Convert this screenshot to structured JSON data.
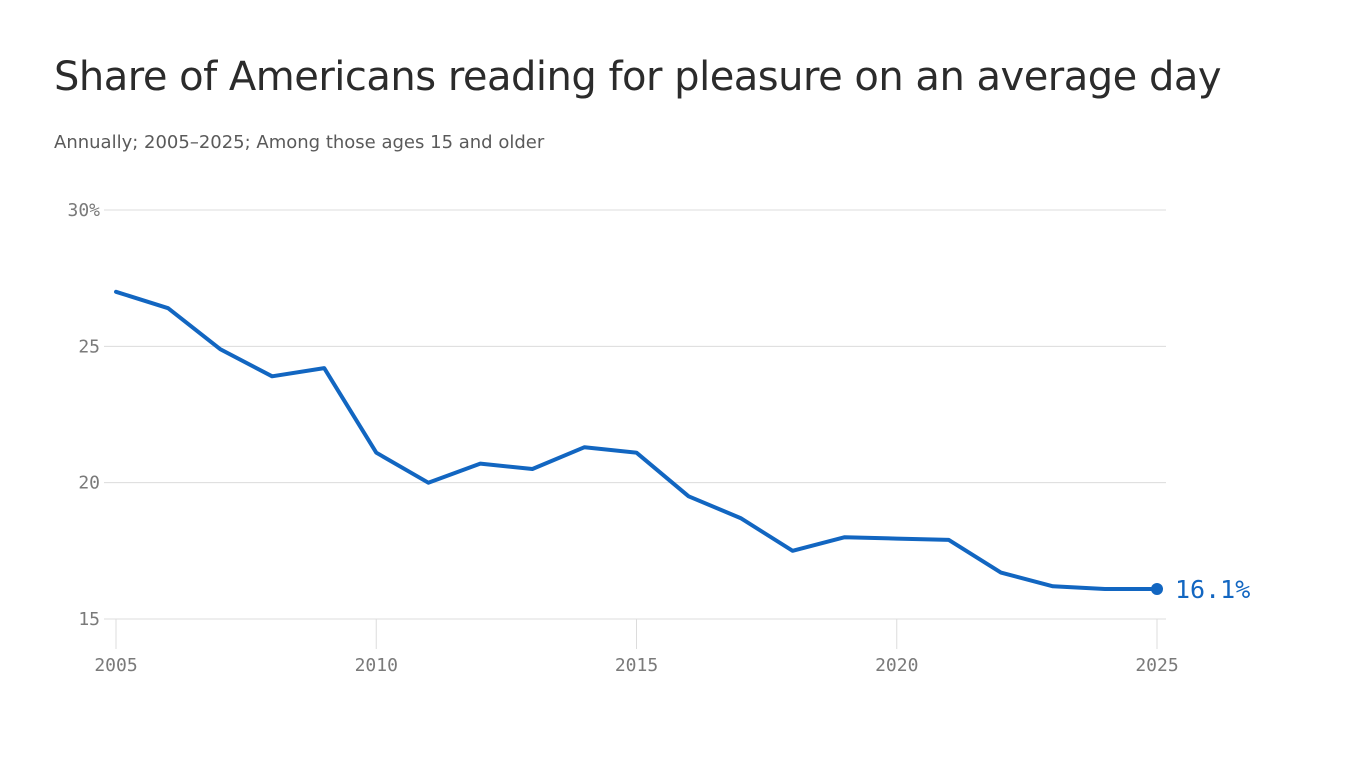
{
  "colors": {
    "line": "#1266c1",
    "grid": "#dcdcdc",
    "tick_text": "#7a7a7a",
    "title": "#2b2b2b",
    "subtitle": "#5a5a5a"
  },
  "chart_data": {
    "type": "line",
    "title": "Share of Americans reading for pleasure on an average day",
    "subtitle": "Annually; 2005–2025; Among those ages 15 and older",
    "xlabel": "",
    "ylabel": "",
    "xlim": [
      2005,
      2025
    ],
    "ylim": [
      15,
      30
    ],
    "grid": true,
    "y_ticks": [
      15,
      20,
      25,
      30
    ],
    "y_tick_labels": [
      "15",
      "20",
      "25",
      "30%"
    ],
    "x_ticks": [
      2005,
      2010,
      2015,
      2020,
      2025
    ],
    "x_tick_labels": [
      "2005",
      "2010",
      "2015",
      "2020",
      "2025"
    ],
    "series": [
      {
        "x": [
          2005,
          2006,
          2007,
          2008,
          2009,
          2010,
          2011,
          2012,
          2013,
          2014,
          2015,
          2016,
          2017,
          2018,
          2019,
          2020,
          2021,
          2022,
          2023,
          2024,
          2025
        ],
        "values": [
          27.0,
          26.4,
          24.9,
          23.9,
          24.2,
          21.1,
          20.0,
          20.7,
          20.5,
          21.3,
          21.1,
          19.5,
          18.7,
          17.5,
          18.0,
          17.95,
          17.9,
          16.7,
          16.2,
          16.1,
          16.1
        ]
      }
    ],
    "end_label": "16.1%"
  }
}
